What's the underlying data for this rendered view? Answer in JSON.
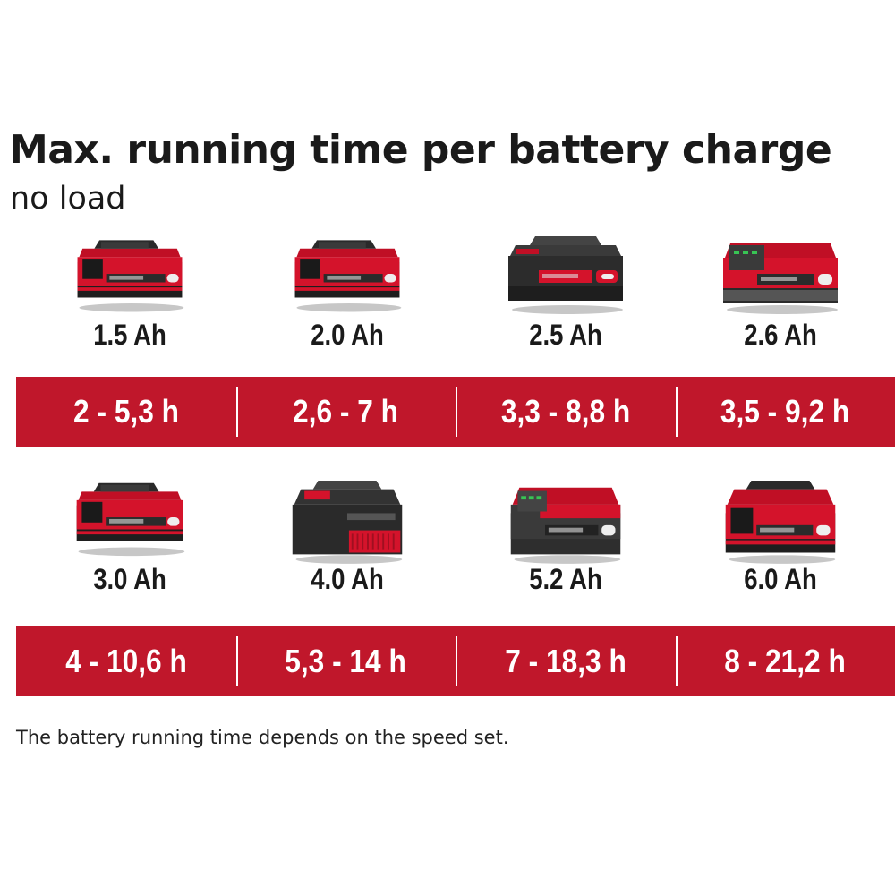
{
  "title": "Max. running time per battery charge",
  "subtitle": "no load",
  "note": "The battery running time depends on the speed set.",
  "colors": {
    "accent": "#c0172b",
    "text": "#1a1a1a",
    "bar_text": "#ffffff"
  },
  "rows": [
    {
      "batteries": [
        {
          "capacity": "1.5 Ah",
          "runtime": "2 - 5,3 h",
          "icon": "battery-pack-icon",
          "style": "compact-red"
        },
        {
          "capacity": "2.0 Ah",
          "runtime": "2,6 - 7 h",
          "icon": "battery-pack-icon",
          "style": "compact-red"
        },
        {
          "capacity": "2.5 Ah",
          "runtime": "3,3 - 8,8 h",
          "icon": "battery-pack-icon",
          "style": "compact-dark"
        },
        {
          "capacity": "2.6 Ah",
          "runtime": "3,5 - 9,2 h",
          "icon": "battery-pack-icon",
          "style": "compact-led"
        }
      ]
    },
    {
      "batteries": [
        {
          "capacity": "3.0 Ah",
          "runtime": "4 - 10,6 h",
          "icon": "battery-pack-icon",
          "style": "compact-red"
        },
        {
          "capacity": "4.0 Ah",
          "runtime": "5,3 - 14 h",
          "icon": "battery-pack-icon",
          "style": "large-dark"
        },
        {
          "capacity": "5.2 Ah",
          "runtime": "7 - 18,3 h",
          "icon": "battery-pack-icon",
          "style": "large-led"
        },
        {
          "capacity": "6.0 Ah",
          "runtime": "8 - 21,2 h",
          "icon": "battery-pack-icon",
          "style": "large-red"
        }
      ]
    }
  ]
}
